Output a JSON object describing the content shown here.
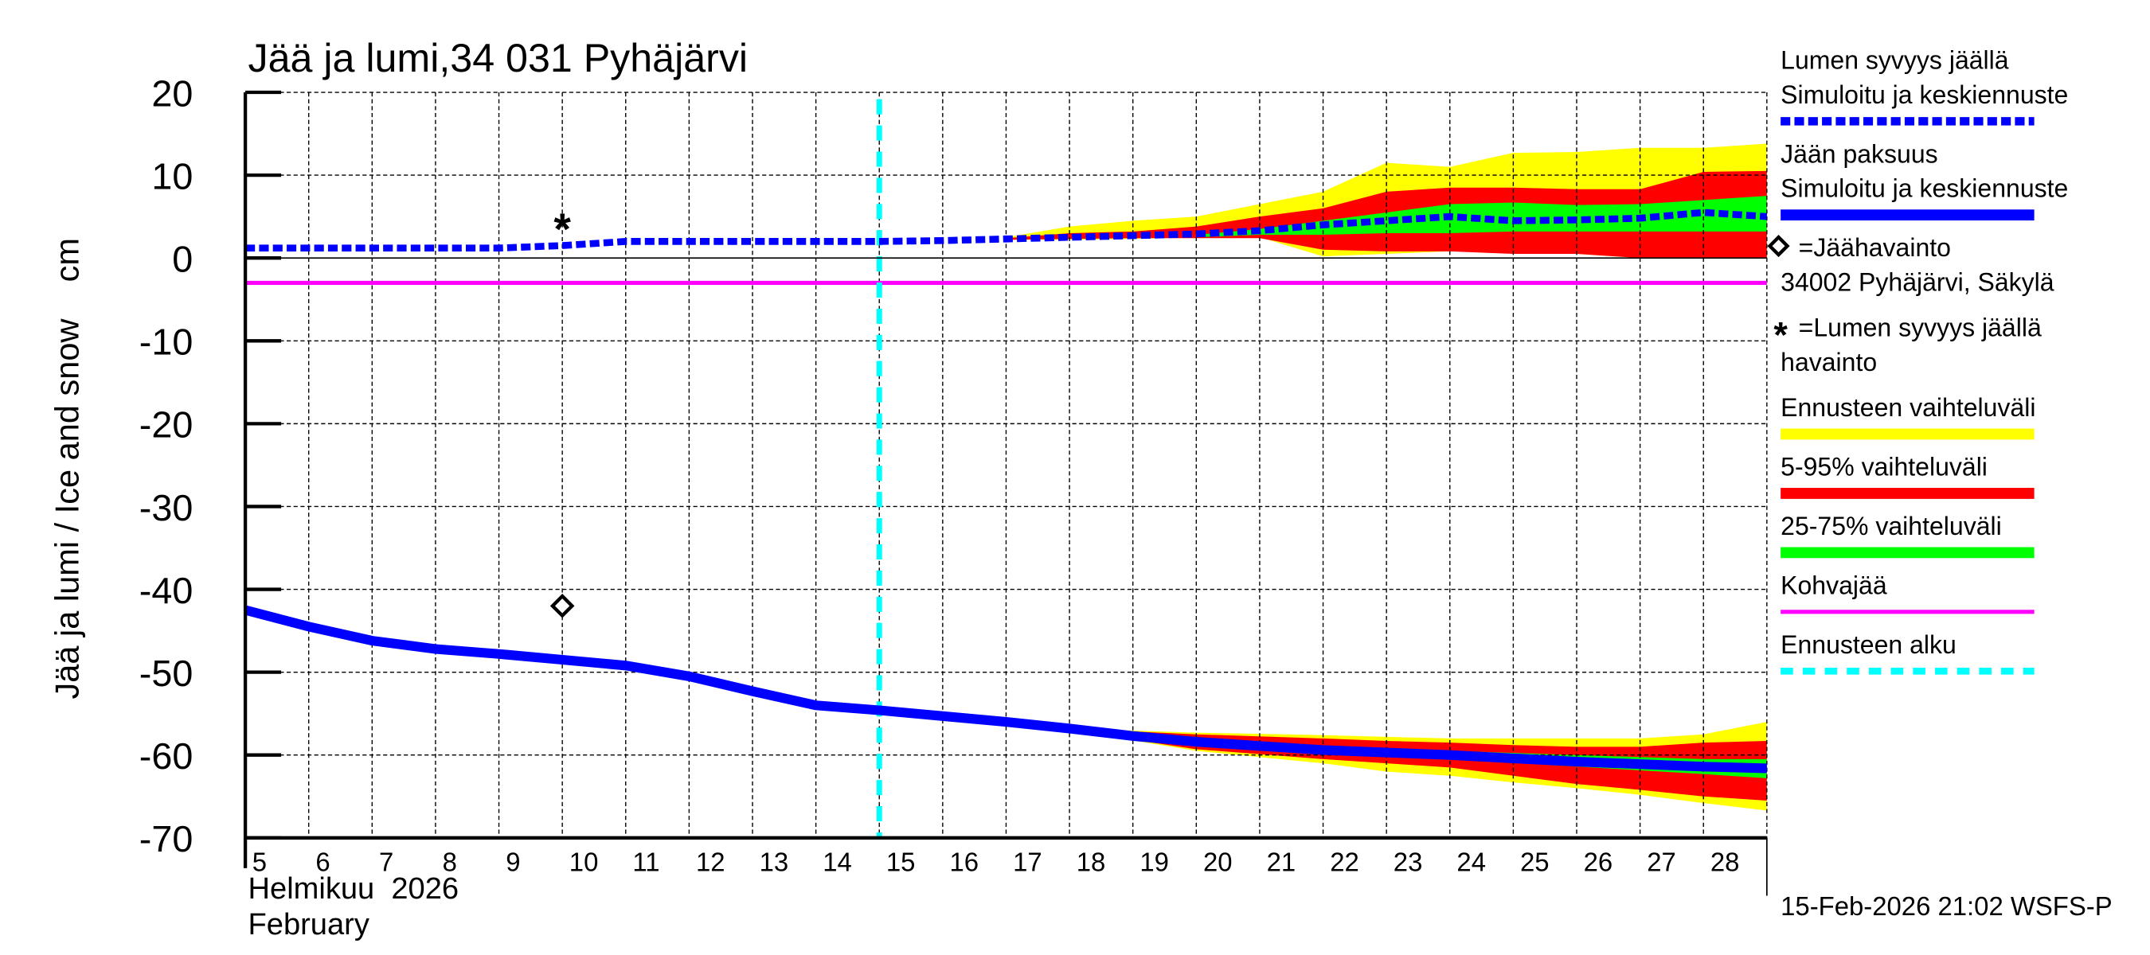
{
  "chart_data": {
    "type": "area",
    "title": "Jää ja lumi,34 031 Pyhäjärvi",
    "ylabel": "Jää ja lumi / Ice and snow    cm",
    "xlabel_line1": "Helmikuu  2026",
    "xlabel_line2": "February",
    "ylim": [
      -70,
      20
    ],
    "xlim": [
      5,
      29
    ],
    "yticks": [
      20,
      10,
      0,
      -10,
      -20,
      -30,
      -40,
      -50,
      -60,
      -70
    ],
    "xticks": [
      5,
      6,
      7,
      8,
      9,
      10,
      11,
      12,
      13,
      14,
      15,
      16,
      17,
      18,
      19,
      20,
      21,
      22,
      23,
      24,
      25,
      26,
      27,
      28
    ],
    "grid": true,
    "forecast_start_day": 15,
    "kohvajaa_level": -3,
    "snow_depth": {
      "x": [
        5,
        6,
        7,
        8,
        9,
        10,
        11,
        12,
        13,
        14,
        15,
        16,
        17,
        18,
        19,
        20,
        21,
        22,
        23,
        24,
        25,
        26,
        27,
        28,
        29
      ],
      "y": [
        1.2,
        1.2,
        1.2,
        1.2,
        1.2,
        1.5,
        2.0,
        2.0,
        2.0,
        2.0,
        2.0,
        2.1,
        2.3,
        2.5,
        2.7,
        2.9,
        3.3,
        4.0,
        4.5,
        5.0,
        4.5,
        4.6,
        4.8,
        5.5,
        5.0
      ]
    },
    "ice_thickness": {
      "x": [
        5,
        6,
        7,
        8,
        9,
        10,
        11,
        12,
        13,
        14,
        15,
        16,
        17,
        18,
        19,
        20,
        21,
        22,
        23,
        24,
        25,
        26,
        27,
        28,
        29
      ],
      "y": [
        -42.5,
        -44.5,
        -46.2,
        -47.2,
        -47.8,
        -48.5,
        -49.2,
        -50.5,
        -52.3,
        -54.0,
        -54.6,
        -55.3,
        -56.0,
        -56.8,
        -57.7,
        -58.4,
        -58.9,
        -59.4,
        -59.7,
        -60.0,
        -60.4,
        -60.8,
        -61.1,
        -61.4,
        -61.6
      ]
    },
    "snow_observation": {
      "x": 10,
      "y": 4
    },
    "ice_observation": {
      "x": 10,
      "y": -42
    },
    "bands": [
      {
        "name": "snow-range-full",
        "color": "#ffff00",
        "x": [
          17,
          18,
          19,
          20,
          21,
          22,
          23,
          24,
          25,
          26,
          27,
          28,
          29
        ],
        "upper": [
          2.5,
          3.8,
          4.5,
          5,
          6.5,
          8,
          11.5,
          11,
          12.7,
          12.8,
          13.3,
          13.3,
          13.8
        ],
        "lower": [
          2.2,
          2.2,
          2.3,
          2.5,
          2.5,
          0.2,
          0.5,
          0.8,
          0.8,
          0.5,
          0,
          0,
          0
        ]
      },
      {
        "name": "snow-range-5-95",
        "color": "#ff0000",
        "x": [
          17,
          18,
          19,
          20,
          21,
          22,
          23,
          24,
          25,
          26,
          27,
          28,
          29
        ],
        "upper": [
          2.4,
          3,
          3.2,
          3.8,
          5,
          6,
          8,
          8.5,
          8.5,
          8.3,
          8.3,
          10.4,
          10.5
        ],
        "lower": [
          2.2,
          2.3,
          2.4,
          2.4,
          2.4,
          1,
          0.8,
          0.8,
          0.5,
          0.5,
          0,
          0,
          0
        ]
      },
      {
        "name": "snow-range-25-75",
        "color": "#00ff00",
        "x": [
          20,
          21,
          22,
          23,
          24,
          25,
          26,
          27,
          28,
          29
        ],
        "upper": [
          2.8,
          3.5,
          4.5,
          5.5,
          6.5,
          6.7,
          6.4,
          6.5,
          7,
          7.5
        ],
        "lower": [
          2.5,
          2.8,
          2.8,
          3,
          3,
          3.2,
          3.2,
          3.2,
          3.2,
          3.2
        ]
      },
      {
        "name": "ice-range-full",
        "color": "#ffff00",
        "x": [
          18,
          20,
          22,
          23,
          24,
          25,
          26,
          27,
          28,
          29
        ],
        "upper": [
          -56.8,
          -57.3,
          -57.6,
          -57.8,
          -58,
          -58,
          -58,
          -58,
          -57.5,
          -56
        ],
        "lower": [
          -57,
          -59.5,
          -61,
          -62,
          -62.5,
          -63.3,
          -64,
          -64.8,
          -65.8,
          -66.7
        ]
      },
      {
        "name": "ice-range-5-95",
        "color": "#ff0000",
        "x": [
          18,
          20,
          22,
          23,
          24,
          25,
          26,
          27,
          28,
          29
        ],
        "upper": [
          -56.8,
          -57.5,
          -58,
          -58.3,
          -58.5,
          -58.8,
          -59,
          -59,
          -58.5,
          -58.3
        ],
        "lower": [
          -57,
          -59.3,
          -60.5,
          -61,
          -61.5,
          -62.5,
          -63.5,
          -64.2,
          -65,
          -65.5
        ]
      },
      {
        "name": "ice-range-25-75",
        "color": "#00ff00",
        "x": [
          20,
          22,
          24,
          26,
          28,
          29
        ],
        "upper": [
          -58.2,
          -58.9,
          -59.5,
          -60,
          -60.5,
          -60.5
        ],
        "lower": [
          -58.6,
          -59.6,
          -60.5,
          -61.4,
          -62.3,
          -62.8
        ]
      }
    ],
    "legend": [
      {
        "line1": "Lumen syvyys jäällä",
        "line2": "Simuloitu ja keskiennuste",
        "style": "dashed",
        "color": "#0000ff"
      },
      {
        "line1": "Jään paksuus",
        "line2": "Simuloitu ja keskiennuste",
        "style": "solid",
        "color": "#0000ff"
      },
      {
        "line1": "=Jäähavainto",
        "line2": "34002 Pyhäjärvi, Säkylä",
        "style": "diamond",
        "color": "#000000"
      },
      {
        "line1": "=Lumen syvyys jäällä",
        "line2": "havainto",
        "style": "star",
        "color": "#000000"
      },
      {
        "line1": "Ennusteen vaihteluväli",
        "style": "solid",
        "color": "#ffff00"
      },
      {
        "line1": "5-95% vaihteluväli",
        "style": "solid",
        "color": "#ff0000"
      },
      {
        "line1": "25-75% vaihteluväli",
        "style": "solid",
        "color": "#00ff00"
      },
      {
        "line1": "Kohvajää",
        "style": "thin",
        "color": "#ff00ff"
      },
      {
        "line1": "Ennusteen alku",
        "style": "dashed",
        "color": "#00ffff"
      }
    ],
    "legend_placement": "right",
    "timestamp": "15-Feb-2026 21:02 WSFS-P"
  }
}
